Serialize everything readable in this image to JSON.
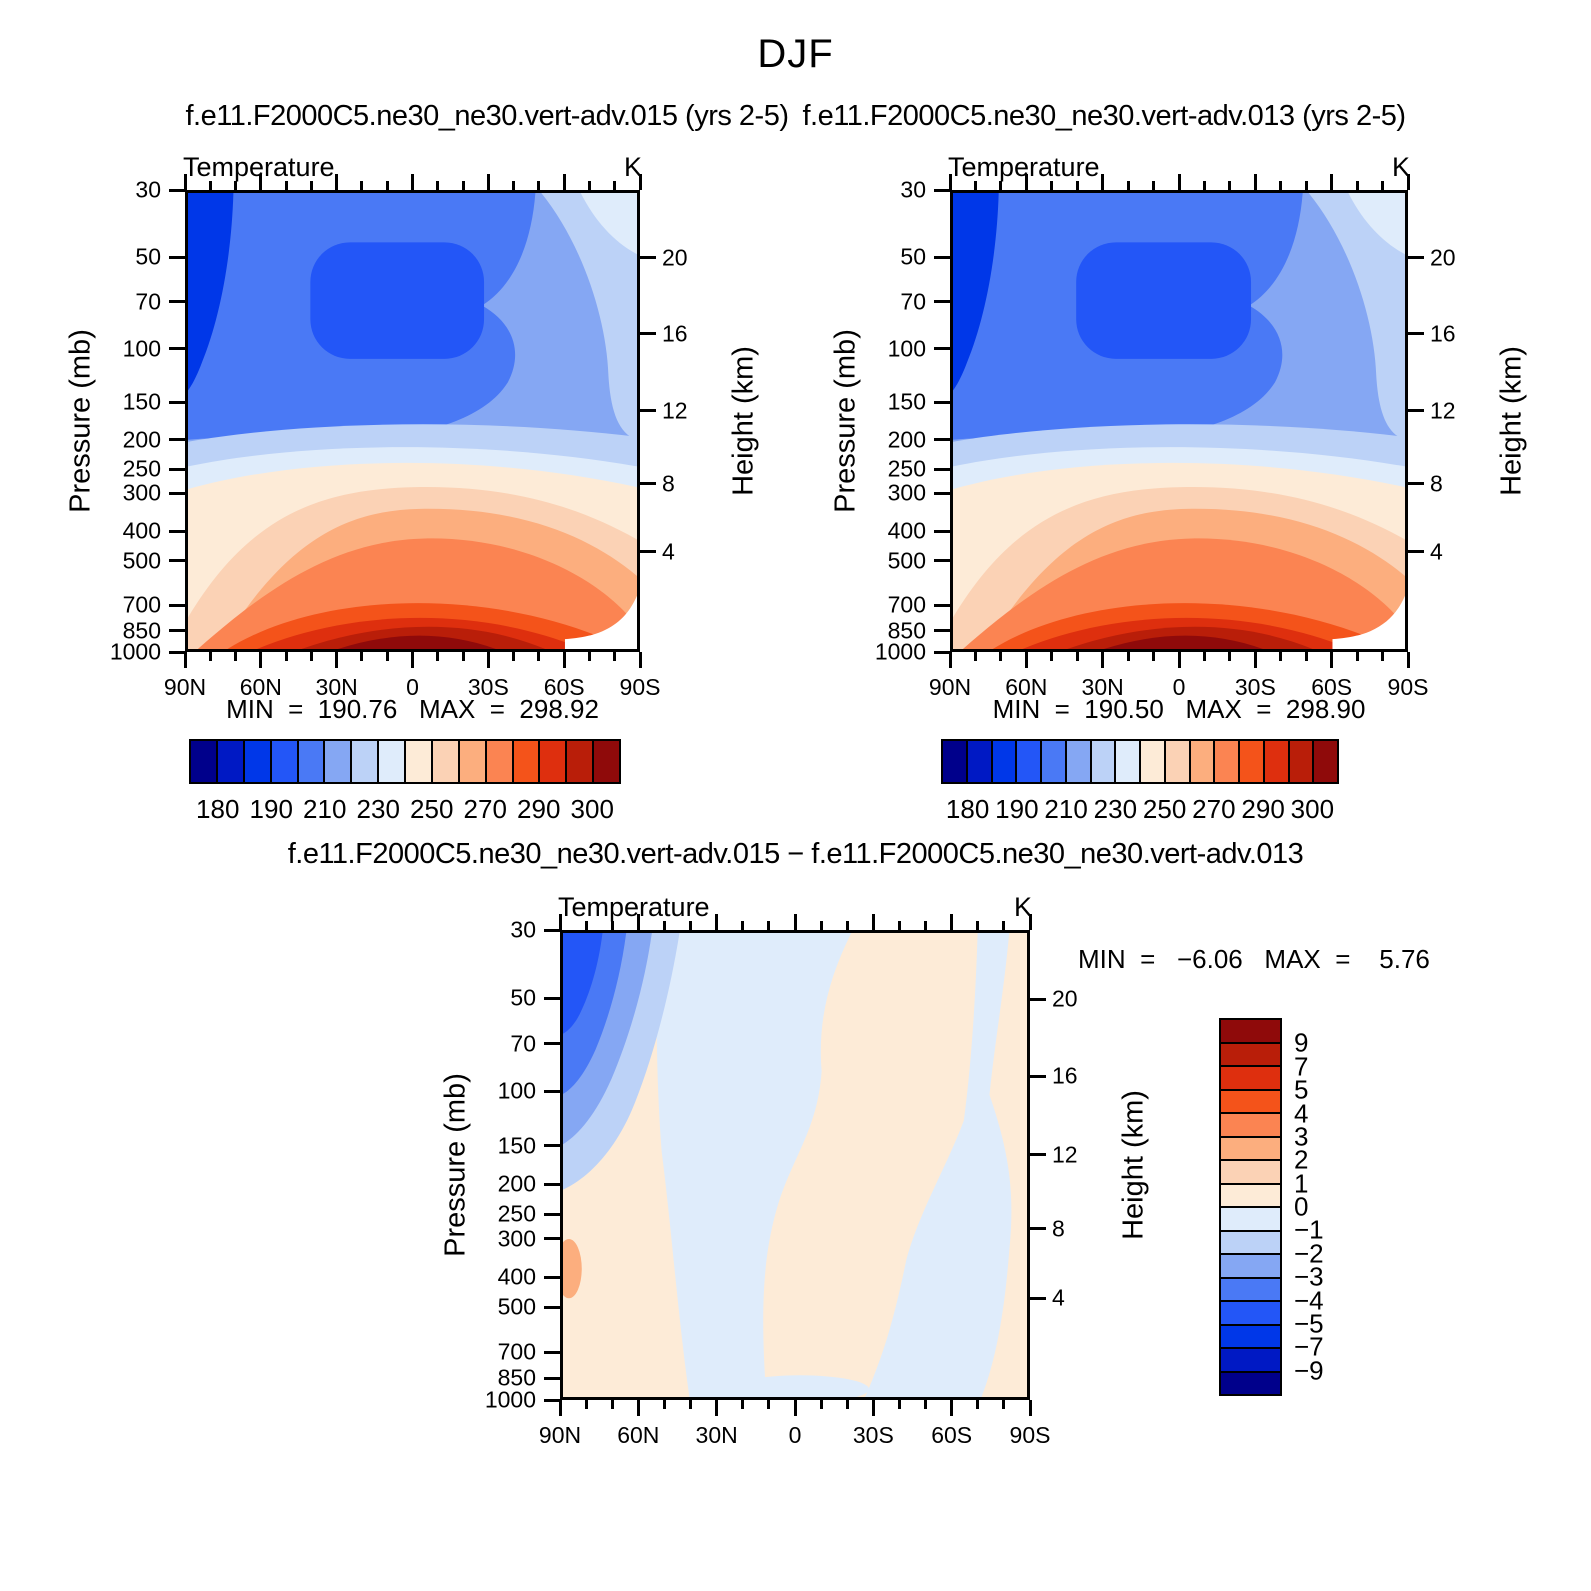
{
  "header": {
    "title": "DJF",
    "left_subtitle": "f.e11.F2000C5.ne30_ne30.vert-adv.015 (yrs 2-5)",
    "right_subtitle": "f.e11.F2000C5.ne30_ne30.vert-adv.013 (yrs 2-5)",
    "diff_title": "f.e11.F2000C5.ne30_ne30.vert-adv.015 − f.e11.F2000C5.ne30_ne30.vert-adv.013"
  },
  "chart_data": {
    "type": "filled-contour",
    "field": "Temperature",
    "units": "K",
    "season": "DJF",
    "palette_blue_to_red": [
      "#00008B",
      "#0019C4",
      "#0037E8",
      "#2356F7",
      "#4A79F5",
      "#85A7F3",
      "#BCD2F7",
      "#DFECFB",
      "#FDEBD7",
      "#FBD2B5",
      "#FCAE7E",
      "#FB8452",
      "#F4531A",
      "#DE2F0E",
      "#B91E09",
      "#8F0A0A"
    ],
    "axes": {
      "x": {
        "label_ticks": [
          "90N",
          "60N",
          "30N",
          "0",
          "30S",
          "60S",
          "90S"
        ],
        "minor_step_deg": 10,
        "range_deg": [
          90,
          -90
        ]
      },
      "y_pressure": {
        "label": "Pressure (mb)",
        "ticks": [
          30,
          50,
          70,
          100,
          150,
          200,
          250,
          300,
          400,
          500,
          700,
          850,
          1000
        ],
        "scale": "log",
        "range": [
          30,
          1000
        ]
      },
      "y_height": {
        "label": "Height (km)",
        "ticks": [
          20,
          16,
          12,
          8,
          4
        ]
      }
    },
    "panels": [
      {
        "name": "run015",
        "title": "Temperature",
        "units": "K",
        "min": 190.76,
        "max": 298.92,
        "minmax_text": "MIN  =  190.76   MAX  =  298.92",
        "contour_levels": [
          180,
          185,
          190,
          200,
          210,
          220,
          230,
          240,
          250,
          260,
          270,
          280,
          290,
          295,
          300
        ],
        "colorbar_labels": [
          "180",
          "190",
          "210",
          "230",
          "250",
          "270",
          "290",
          "300"
        ],
        "colorbar_label_boundaries": [
          1,
          3,
          5,
          7,
          9,
          11,
          13,
          15
        ]
      },
      {
        "name": "run013",
        "title": "Temperature",
        "units": "K",
        "min": 190.5,
        "max": 298.9,
        "minmax_text": "MIN  =  190.50   MAX  =  298.90",
        "contour_levels": [
          180,
          185,
          190,
          200,
          210,
          220,
          230,
          240,
          250,
          260,
          270,
          280,
          290,
          295,
          300
        ],
        "colorbar_labels": [
          "180",
          "190",
          "210",
          "230",
          "250",
          "270",
          "290",
          "300"
        ],
        "colorbar_label_boundaries": [
          1,
          3,
          5,
          7,
          9,
          11,
          13,
          15
        ]
      },
      {
        "name": "difference",
        "title": "Temperature",
        "units": "K",
        "min": -6.06,
        "max": 5.76,
        "minmax_text": "MIN  =   −6.06   MAX  =    5.76",
        "contour_levels": [
          -9,
          -7,
          -5,
          -4,
          -3,
          -2,
          -1,
          0,
          1,
          2,
          3,
          4,
          5,
          7,
          9
        ],
        "colorbar_labels": [
          "9",
          "7",
          "5",
          "4",
          "3",
          "2",
          "1",
          "0",
          "−1",
          "−2",
          "−3",
          "−4",
          "−5",
          "−7",
          "−9"
        ],
        "colorbar_label_boundaries": [
          1,
          2,
          3,
          4,
          5,
          6,
          7,
          8,
          9,
          10,
          11,
          12,
          13,
          14,
          15
        ]
      }
    ]
  }
}
